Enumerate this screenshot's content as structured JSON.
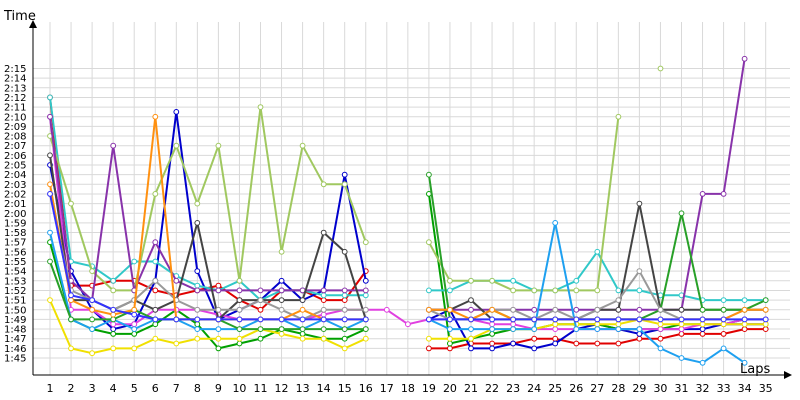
{
  "chart_data": {
    "type": "line",
    "ylabel": "Time",
    "xlabel": "Laps",
    "x": [
      1,
      2,
      3,
      4,
      5,
      6,
      7,
      8,
      9,
      10,
      11,
      12,
      13,
      14,
      15,
      16,
      17,
      18,
      19,
      20,
      21,
      22,
      23,
      24,
      25,
      26,
      27,
      28,
      29,
      30,
      31,
      32,
      33,
      34,
      35
    ],
    "ylim_seconds": [
      101,
      136
    ],
    "ytick_labels": [
      "1:45",
      "1:46",
      "1:47",
      "1:48",
      "1:49",
      "1:50",
      "1:51",
      "1:52",
      "1:53",
      "1:54",
      "1:55",
      "1:56",
      "1:57",
      "1:58",
      "1:59",
      "2:00",
      "2:01",
      "2:02",
      "2:03",
      "2:04",
      "2:05",
      "2:06",
      "2:07",
      "2:08",
      "2:09",
      "2:10",
      "2:11",
      "2:12",
      "2:13",
      "2:14",
      "2:15"
    ],
    "xtick_labels": [
      "1",
      "2",
      "3",
      "4",
      "5",
      "6",
      "7",
      "8",
      "9",
      "10",
      "11",
      "12",
      "13",
      "14",
      "15",
      "16",
      "17",
      "18",
      "19",
      "20",
      "21",
      "22",
      "23",
      "24",
      "25",
      "26",
      "27",
      "28",
      "29",
      "30",
      "31",
      "32",
      "33",
      "34",
      "35"
    ],
    "series": [
      {
        "color": "#e00000",
        "values": [
          132,
          112.5,
          112.5,
          113,
          113,
          112,
          111.5,
          112,
          112.5,
          111,
          110,
          112,
          112,
          111,
          111,
          114,
          null,
          null,
          106,
          106,
          106.5,
          106.5,
          106.5,
          107,
          107,
          106.5,
          106.5,
          106.5,
          107,
          107,
          107.5,
          107.5,
          107.5,
          108,
          108
        ]
      },
      {
        "color": "#0000cc",
        "values": [
          125,
          114,
          110,
          108,
          108.5,
          113,
          130.5,
          114,
          109,
          110,
          111,
          113,
          111,
          112,
          124,
          113,
          null,
          null,
          109,
          110,
          106,
          106,
          106.5,
          106,
          106.5,
          108,
          108.5,
          108,
          107.5,
          108,
          108,
          108,
          108.5,
          108.5,
          108.5
        ]
      },
      {
        "color": "#00a000",
        "values": [
          117,
          109,
          108,
          107.5,
          107.5,
          108.5,
          110,
          108.5,
          106,
          106.5,
          107,
          108,
          107.5,
          107,
          107,
          108,
          null,
          null,
          122,
          106.5,
          107,
          107.5,
          108,
          108,
          108.5,
          108.5,
          108.5,
          108,
          108,
          108,
          108.5,
          108.5,
          108.5,
          109,
          109
        ]
      },
      {
        "color": "#e040e0",
        "values": [
          130,
          110,
          110,
          108.5,
          108.5,
          110,
          110,
          110,
          109.5,
          109,
          109,
          109,
          109,
          109.5,
          110,
          110,
          110,
          108.5,
          109,
          109,
          109,
          108.5,
          108.5,
          108,
          108,
          108,
          108,
          108,
          108,
          108,
          108,
          108.5,
          108.5,
          109,
          109
        ]
      },
      {
        "color": "#f0e000",
        "values": [
          111,
          106,
          105.5,
          106,
          106,
          107,
          106.5,
          107,
          107,
          107,
          108,
          107.5,
          107,
          107,
          106,
          107,
          null,
          null,
          107,
          107,
          107,
          108,
          108,
          108,
          108.5,
          108.5,
          108.5,
          108.5,
          109,
          108.5,
          108.5,
          108.5,
          108.5,
          108.5,
          108.5
        ]
      },
      {
        "color": "#30c8c8",
        "values": [
          132,
          115,
          114.5,
          113,
          115,
          115,
          113.5,
          112.5,
          112,
          113,
          111,
          112,
          112,
          111.5,
          111.5,
          111.5,
          null,
          null,
          112,
          112,
          113,
          113,
          113,
          112,
          112,
          113,
          116,
          112,
          112,
          111.5,
          111.5,
          111,
          111,
          111,
          111
        ]
      },
      {
        "color": "#a0c860",
        "values": [
          128,
          121,
          114,
          112,
          112,
          122,
          127,
          121,
          127,
          113,
          131,
          116,
          127,
          123,
          123,
          117,
          null,
          null,
          117,
          113,
          113,
          113,
          112,
          112,
          112,
          112,
          112,
          130,
          null,
          135,
          null,
          null,
          null,
          null,
          null
        ]
      },
      {
        "color": "#8833aa",
        "values": [
          130,
          113,
          111,
          127,
          112,
          117,
          113,
          112,
          112,
          112,
          112,
          112,
          112,
          112,
          112,
          112,
          null,
          null,
          110,
          110,
          110,
          110,
          110,
          110,
          110,
          110,
          110,
          110,
          110,
          110,
          110,
          122,
          122,
          136,
          null
        ]
      },
      {
        "color": "#1ea0f0",
        "values": [
          118,
          109,
          108,
          109,
          108,
          109,
          109,
          108,
          108,
          108,
          109,
          109,
          108,
          109,
          108,
          109,
          null,
          null,
          109,
          108,
          108,
          108,
          108,
          108,
          119,
          108,
          108,
          108,
          108,
          106,
          105,
          104.5,
          106,
          104.5,
          null
        ]
      },
      {
        "color": "#444444",
        "values": [
          126,
          111,
          111,
          110,
          111,
          110,
          111,
          119,
          109,
          111,
          111,
          111,
          111,
          118,
          116,
          109,
          null,
          null,
          110,
          110,
          111,
          109,
          109,
          109,
          109,
          109,
          110,
          110,
          121,
          110,
          110,
          110,
          110,
          110,
          110
        ]
      },
      {
        "color": "#28a028",
        "values": [
          115,
          109,
          109,
          109,
          110,
          109,
          109,
          109,
          109,
          108,
          108,
          108,
          108,
          108,
          108,
          108,
          null,
          null,
          124,
          109,
          109,
          110,
          109,
          109,
          109,
          109,
          109,
          109,
          109,
          110,
          120,
          110,
          110,
          110,
          111
        ]
      },
      {
        "color": "#999999",
        "values": [
          122,
          112,
          111,
          110,
          111,
          113,
          111,
          110,
          110,
          110,
          111,
          110,
          109,
          110,
          110,
          110,
          null,
          null,
          110,
          109,
          109,
          110,
          110,
          109,
          110,
          109,
          110,
          111,
          114,
          110,
          109,
          109,
          109,
          110,
          110
        ]
      },
      {
        "color": "#ff9010",
        "values": [
          123,
          111,
          110,
          109.5,
          110,
          130,
          109,
          109,
          109,
          109,
          109,
          109,
          110,
          109,
          109,
          109,
          null,
          null,
          110,
          110,
          109,
          110,
          109,
          109,
          109,
          109,
          109,
          109,
          109,
          109,
          109,
          109,
          109,
          110,
          110
        ]
      },
      {
        "color": "#3333ff",
        "values": [
          122,
          111.5,
          111,
          110,
          109.5,
          109,
          109,
          109,
          109,
          109,
          109,
          109,
          109,
          109,
          109,
          109,
          null,
          null,
          109,
          109,
          109,
          109,
          109,
          109,
          109,
          109,
          109,
          109,
          109,
          109,
          109,
          109,
          109,
          109,
          109
        ]
      }
    ]
  }
}
